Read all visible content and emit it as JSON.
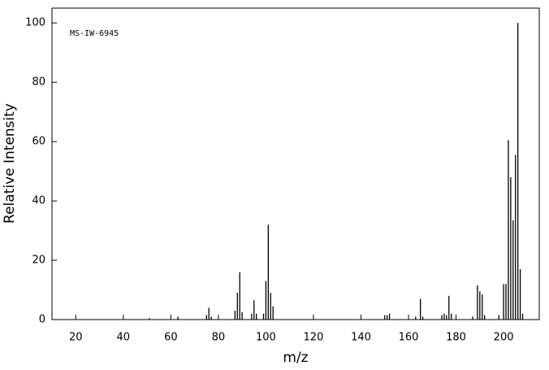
{
  "chart_data": {
    "type": "stick",
    "annotation": "MS-IW-6945",
    "x_label": "m/z",
    "y_label": "Relative Intensity",
    "x": [
      51,
      63,
      75,
      76,
      77,
      87,
      88,
      89,
      90,
      94,
      95,
      96,
      99,
      100,
      101,
      102,
      103,
      150,
      151,
      152,
      163,
      165,
      166,
      174,
      175,
      176,
      177,
      178,
      187,
      189,
      190,
      191,
      192,
      198,
      200,
      201,
      202,
      203,
      204,
      205,
      206,
      207,
      208
    ],
    "values": [
      0.5,
      1,
      1.5,
      4,
      1,
      3,
      9,
      16,
      2.5,
      2,
      6.5,
      2,
      2,
      13,
      32,
      9,
      4.5,
      1.5,
      1.5,
      2,
      1,
      7,
      1,
      1.5,
      2,
      1.5,
      8,
      2,
      1,
      11.5,
      9.5,
      8.5,
      1.5,
      1.5,
      12,
      12,
      60.5,
      48,
      33.5,
      55.5,
      100,
      17,
      2
    ],
    "color": "#000000",
    "xlim": [
      10,
      215
    ],
    "xticks": [
      20,
      40,
      60,
      80,
      100,
      120,
      140,
      160,
      180,
      200
    ],
    "ylim": [
      0,
      105
    ],
    "yticks": [
      0,
      20,
      40,
      60,
      80,
      100
    ]
  }
}
